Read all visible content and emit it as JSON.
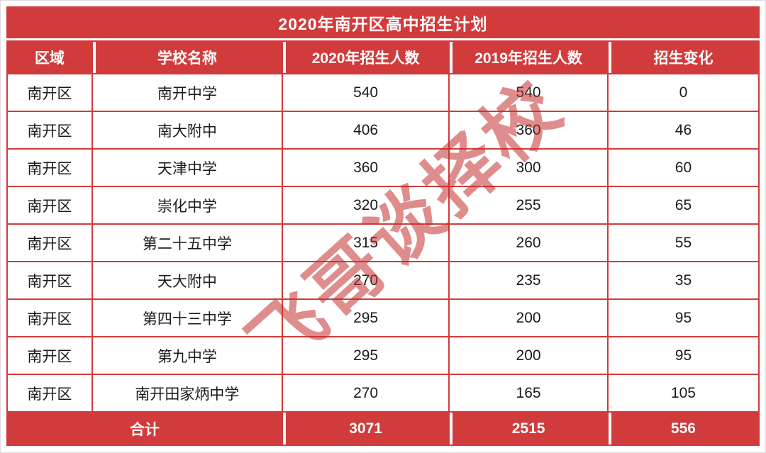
{
  "page": {
    "title": "2020年南开区高中招生计划",
    "watermark": "飞哥谈择校"
  },
  "colors": {
    "primary_red": "#d23b3b",
    "watermark_red": "#c62f2f",
    "body_text": "#1a1a1a"
  },
  "chart_data": {
    "type": "table",
    "title": "2020年南开区高中招生计划",
    "columns": [
      "区域",
      "学校名称",
      "2020年招生人数",
      "2019年招生人数",
      "招生变化"
    ],
    "rows": [
      [
        "南开区",
        "南开中学",
        540,
        540,
        0
      ],
      [
        "南开区",
        "南大附中",
        406,
        360,
        46
      ],
      [
        "南开区",
        "天津中学",
        360,
        300,
        60
      ],
      [
        "南开区",
        "崇化中学",
        320,
        255,
        65
      ],
      [
        "南开区",
        "第二十五中学",
        315,
        260,
        55
      ],
      [
        "南开区",
        "天大附中",
        270,
        235,
        35
      ],
      [
        "南开区",
        "第四十三中学",
        295,
        200,
        95
      ],
      [
        "南开区",
        "第九中学",
        295,
        200,
        95
      ],
      [
        "南开区",
        "南开田家炳中学",
        270,
        165,
        105
      ]
    ],
    "footer": {
      "label": "合计",
      "totals": [
        3071,
        2515,
        556
      ]
    }
  }
}
